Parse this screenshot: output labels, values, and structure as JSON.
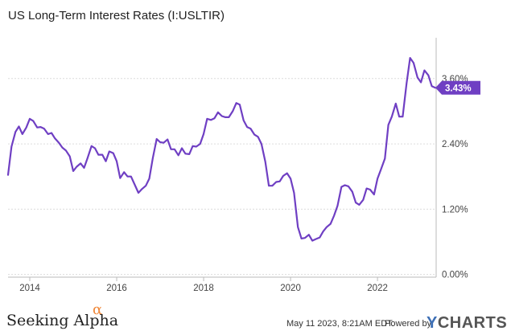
{
  "title": "US Long-Term Interest Rates (I:USLTIR)",
  "colors": {
    "line": "#6f3fc3",
    "grid": "#dcdcdc",
    "axis": "#bbbbbb"
  },
  "chart_data": {
    "type": "line",
    "title": "US Long-Term Interest Rates (I:USLTIR)",
    "xlabel": "",
    "ylabel": "",
    "x_range": [
      2013.5,
      2023.35
    ],
    "ylim": [
      -0.05,
      4.35
    ],
    "x_ticks": [
      {
        "value": 2014,
        "label": "2014"
      },
      {
        "value": 2016,
        "label": "2016"
      },
      {
        "value": 2018,
        "label": "2018"
      },
      {
        "value": 2020,
        "label": "2020"
      },
      {
        "value": 2022,
        "label": "2022"
      }
    ],
    "y_ticks": [
      {
        "value": 0,
        "label": "0.00%"
      },
      {
        "value": 1.2,
        "label": "1.20%"
      },
      {
        "value": 2.4,
        "label": "2.40%"
      },
      {
        "value": 3.6,
        "label": "3.60%"
      }
    ],
    "grid": "horizontal",
    "last_value": {
      "value": 3.43,
      "label": "3.43%"
    },
    "series": [
      {
        "x": [
          2013.5,
          2013.58,
          2013.67,
          2013.75,
          2013.83,
          2013.92,
          2014.0,
          2014.08,
          2014.17,
          2014.25,
          2014.33,
          2014.42,
          2014.5,
          2014.58,
          2014.67,
          2014.75,
          2014.83,
          2014.92,
          2015.0,
          2015.08,
          2015.17,
          2015.25,
          2015.33,
          2015.42,
          2015.5,
          2015.58,
          2015.67,
          2015.75,
          2015.83,
          2015.92,
          2016.0,
          2016.08,
          2016.17,
          2016.25,
          2016.33,
          2016.42,
          2016.5,
          2016.58,
          2016.67,
          2016.75,
          2016.83,
          2016.92,
          2017.0,
          2017.08,
          2017.17,
          2017.25,
          2017.33,
          2017.42,
          2017.5,
          2017.58,
          2017.67,
          2017.75,
          2017.83,
          2017.92,
          2018.0,
          2018.08,
          2018.17,
          2018.25,
          2018.33,
          2018.42,
          2018.5,
          2018.58,
          2018.67,
          2018.75,
          2018.83,
          2018.92,
          2019.0,
          2019.08,
          2019.17,
          2019.25,
          2019.33,
          2019.42,
          2019.5,
          2019.58,
          2019.67,
          2019.75,
          2019.83,
          2019.92,
          2020.0,
          2020.08,
          2020.17,
          2020.25,
          2020.33,
          2020.42,
          2020.5,
          2020.58,
          2020.67,
          2020.75,
          2020.83,
          2020.92,
          2021.0,
          2021.08,
          2021.17,
          2021.25,
          2021.33,
          2021.42,
          2021.5,
          2021.58,
          2021.67,
          2021.75,
          2021.83,
          2021.92,
          2022.0,
          2022.08,
          2022.17,
          2022.25,
          2022.33,
          2022.42,
          2022.5,
          2022.58,
          2022.67,
          2022.75,
          2022.83,
          2022.92,
          2023.0,
          2023.08,
          2023.17,
          2023.25,
          2023.33
        ],
        "values": [
          1.83,
          2.35,
          2.62,
          2.72,
          2.58,
          2.7,
          2.86,
          2.82,
          2.7,
          2.71,
          2.68,
          2.58,
          2.6,
          2.5,
          2.42,
          2.33,
          2.28,
          2.17,
          1.9,
          1.98,
          2.04,
          1.96,
          2.14,
          2.36,
          2.32,
          2.2,
          2.2,
          2.08,
          2.26,
          2.23,
          2.08,
          1.77,
          1.88,
          1.8,
          1.8,
          1.64,
          1.5,
          1.57,
          1.63,
          1.76,
          2.14,
          2.49,
          2.43,
          2.42,
          2.48,
          2.3,
          2.3,
          2.19,
          2.32,
          2.22,
          2.21,
          2.36,
          2.35,
          2.4,
          2.58,
          2.86,
          2.84,
          2.87,
          2.98,
          2.91,
          2.89,
          2.89,
          3.0,
          3.15,
          3.12,
          2.83,
          2.71,
          2.68,
          2.57,
          2.53,
          2.4,
          2.07,
          1.63,
          1.63,
          1.7,
          1.71,
          1.81,
          1.86,
          1.76,
          1.5,
          0.87,
          0.66,
          0.67,
          0.73,
          0.62,
          0.65,
          0.68,
          0.79,
          0.87,
          0.93,
          1.08,
          1.26,
          1.61,
          1.64,
          1.62,
          1.52,
          1.32,
          1.28,
          1.37,
          1.58,
          1.56,
          1.47,
          1.76,
          1.93,
          2.13,
          2.75,
          2.9,
          3.14,
          2.9,
          2.9,
          3.52,
          3.98,
          3.89,
          3.62,
          3.53,
          3.75,
          3.66,
          3.46,
          3.43
        ]
      }
    ]
  },
  "footer": {
    "brand": "Seeking Alpha",
    "brand_mark": "α",
    "timestamp": "May 11 2023, 8:21AM EDT.",
    "powered_by": "Powered by",
    "ycharts_y": "Y",
    "ycharts_rest": "CHARTS"
  }
}
